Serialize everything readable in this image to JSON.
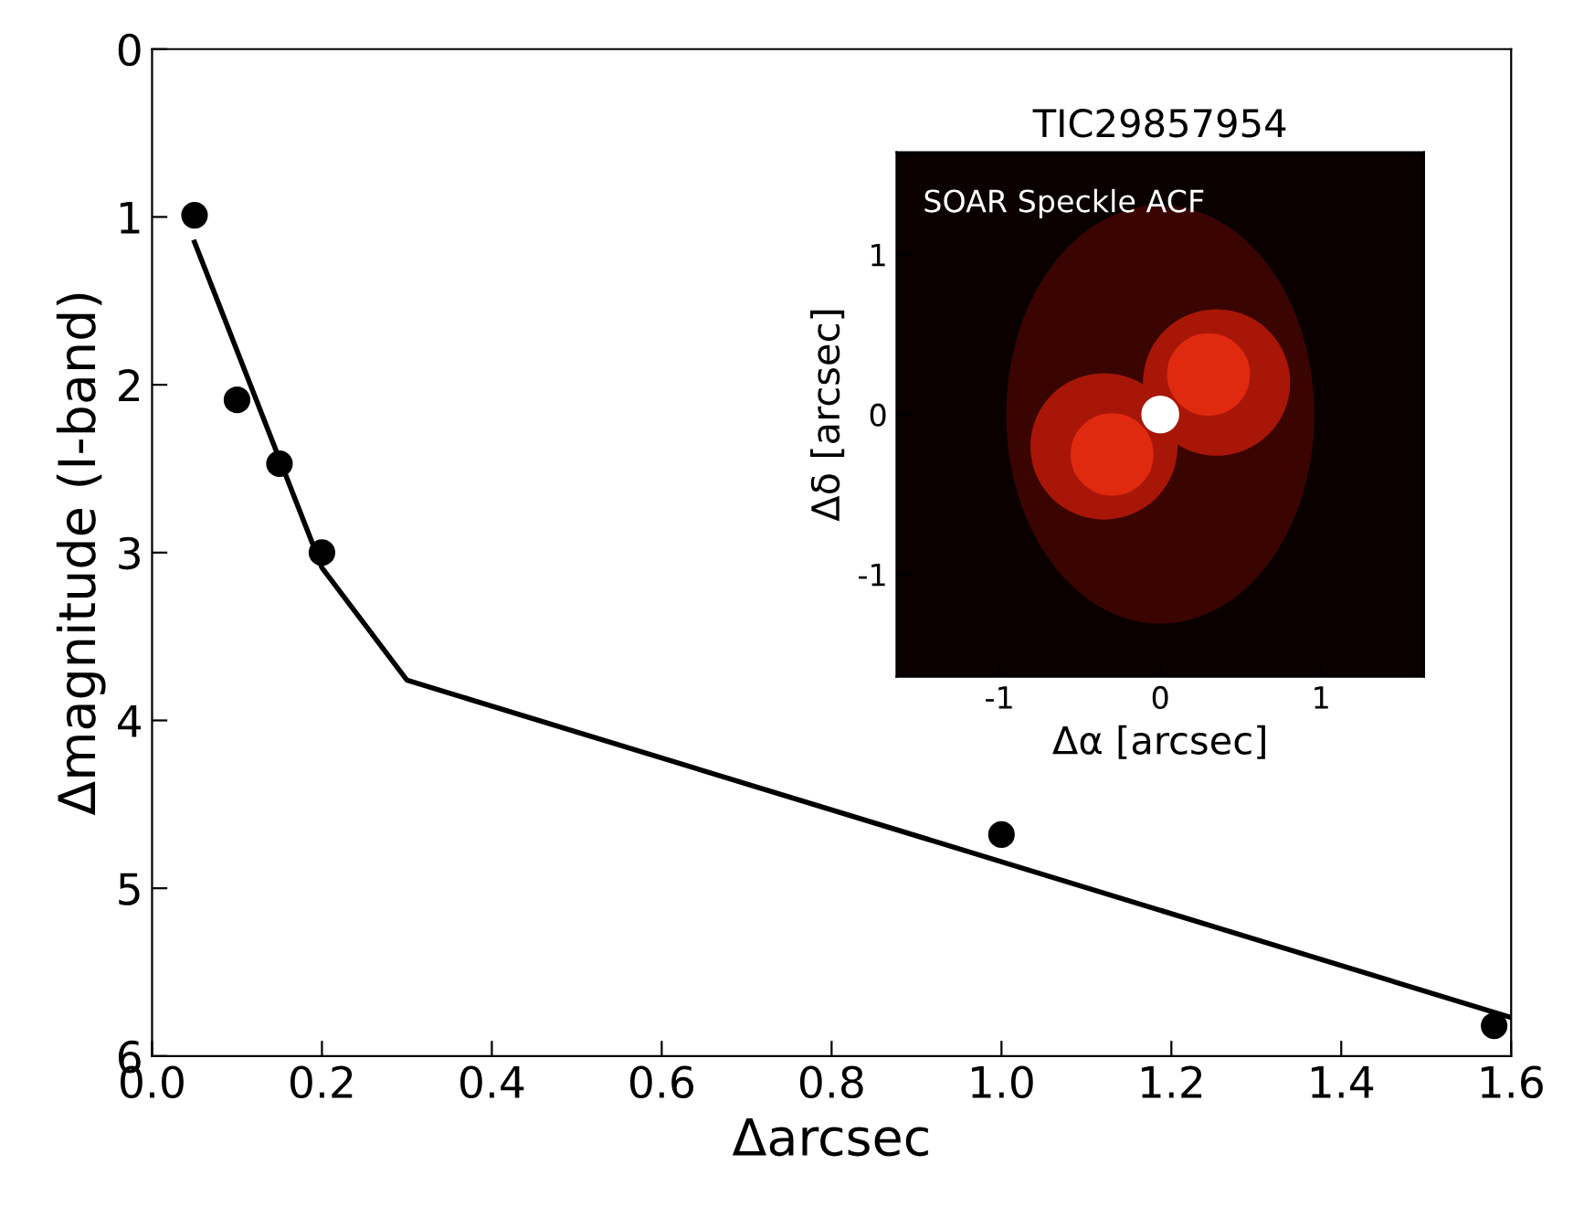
{
  "chart_data": [
    {
      "type": "scatter",
      "xlabel": "Δarcsec",
      "ylabel": "Δmagnitude (I-band)",
      "xlim": [
        0,
        1.6
      ],
      "ylim": [
        6,
        0
      ],
      "xticks": [
        {
          "value": 0,
          "label": "0.0"
        },
        {
          "value": 0.2,
          "label": "0.2"
        },
        {
          "value": 0.4,
          "label": "0.4"
        },
        {
          "value": 0.6,
          "label": "0.6"
        },
        {
          "value": 0.8,
          "label": "0.8"
        },
        {
          "value": 1.0,
          "label": "1.0"
        },
        {
          "value": 1.2,
          "label": "1.2"
        },
        {
          "value": 1.4,
          "label": "1.4"
        },
        {
          "value": 1.6,
          "label": "1.6"
        }
      ],
      "yticks": [
        0,
        1,
        2,
        3,
        4,
        5,
        6
      ],
      "grid": false,
      "series": [
        {
          "type": "scatter",
          "color": "#000000",
          "marker": "circle",
          "x": [
            0.05,
            0.1,
            0.15,
            0.2,
            1.0,
            1.58
          ],
          "values": [
            0.99,
            2.09,
            2.47,
            3.0,
            4.68,
            5.82
          ]
        },
        {
          "type": "line",
          "color": "#000000",
          "marker": "none",
          "line_style": "solid",
          "x": [
            0.05,
            0.2,
            0.3,
            1.6
          ],
          "values": [
            1.15,
            3.09,
            3.76,
            5.77
          ]
        }
      ]
    },
    {
      "type": "scatter",
      "title": "TIC29857954",
      "xlabel": "Δα [arcsec]",
      "ylabel": "Δδ [arcsec]",
      "annotations": [
        "SOAR Speckle ACF"
      ],
      "xlim": [
        -1.64,
        1.64
      ],
      "ylim": [
        -1.64,
        1.64
      ],
      "xticks": [
        -1,
        0,
        1
      ],
      "yticks": [
        -1,
        0,
        1
      ]
    }
  ]
}
